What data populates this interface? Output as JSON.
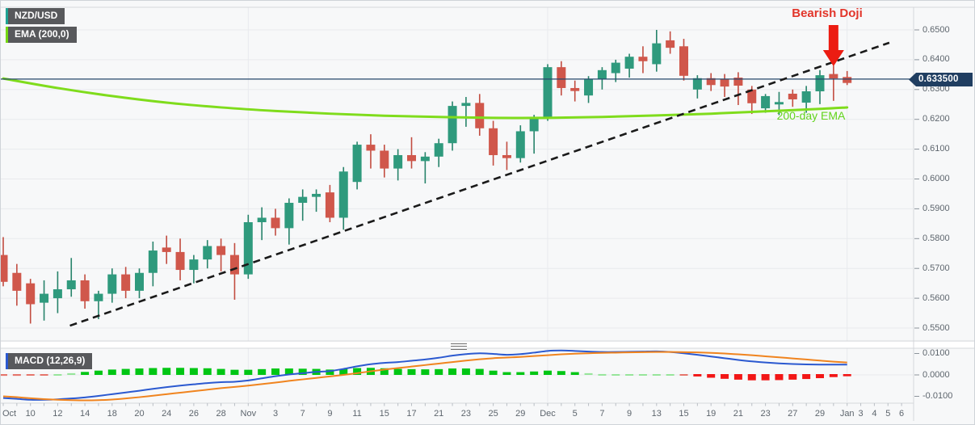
{
  "legend": {
    "symbol": "NZD/USD",
    "ema": "EMA (200,0)",
    "macd": "MACD (12,26,9)"
  },
  "annotations": {
    "bearish_doji": "Bearish Doji",
    "ema_label": "200-day EMA",
    "price_label": "0.633500"
  },
  "colors": {
    "candle_up": "#2f9a7d",
    "candle_up_wick": "#27836a",
    "candle_down": "#d0574b",
    "candle_down_wick": "#c24c40",
    "ema_line": "#7fdc1c",
    "trendline": "#1a1a1a",
    "price_line": "#26476b",
    "price_badge_bg": "#203e61",
    "macd_line": "#2b59d0",
    "signal_line": "#f0841f",
    "hist_green": "#00c614",
    "hist_green_light": "#97e59b",
    "hist_red": "#f21616",
    "hist_red_light": "#e5766c",
    "gridline": "#e8eaed",
    "border": "#d4d7db",
    "axis_text": "#5d656d",
    "arrow_red": "#ec1c12",
    "annotation_red": "#e2352a",
    "annotation_green": "#62d41c"
  },
  "chart_data": [
    {
      "type": "candlestick",
      "title": "NZD/USD daily candles",
      "ylim": [
        0.55,
        0.65
      ],
      "grid": true,
      "y_ticks": [
        {
          "label": "0.6500",
          "value": 0.65
        },
        {
          "label": "0.6400",
          "value": 0.64
        },
        {
          "label": "0.6300",
          "value": 0.63
        },
        {
          "label": "0.6200",
          "value": 0.62
        },
        {
          "label": "0.6100",
          "value": 0.61
        },
        {
          "label": "0.6000",
          "value": 0.6
        },
        {
          "label": "0.5900",
          "value": 0.59
        },
        {
          "label": "0.5800",
          "value": 0.58
        },
        {
          "label": "0.5700",
          "value": 0.57
        },
        {
          "label": "0.5600",
          "value": 0.56
        },
        {
          "label": "0.5500",
          "value": 0.55
        }
      ],
      "x_labels": [
        {
          "text": "Oct",
          "candle": 0
        },
        {
          "text": "10",
          "candle": 2
        },
        {
          "text": "12",
          "candle": 4
        },
        {
          "text": "14",
          "candle": 6
        },
        {
          "text": "18",
          "candle": 8
        },
        {
          "text": "20",
          "candle": 10
        },
        {
          "text": "24",
          "candle": 12
        },
        {
          "text": "26",
          "candle": 14
        },
        {
          "text": "28",
          "candle": 16
        },
        {
          "text": "Nov",
          "candle": 18
        },
        {
          "text": "3",
          "candle": 20
        },
        {
          "text": "7",
          "candle": 22
        },
        {
          "text": "9",
          "candle": 24
        },
        {
          "text": "11",
          "candle": 26
        },
        {
          "text": "15",
          "candle": 28
        },
        {
          "text": "17",
          "candle": 30
        },
        {
          "text": "21",
          "candle": 32
        },
        {
          "text": "23",
          "candle": 34
        },
        {
          "text": "25",
          "candle": 36
        },
        {
          "text": "29",
          "candle": 38
        },
        {
          "text": "Dec",
          "candle": 40
        },
        {
          "text": "5",
          "candle": 42
        },
        {
          "text": "7",
          "candle": 44
        },
        {
          "text": "9",
          "candle": 46
        },
        {
          "text": "13",
          "candle": 48
        },
        {
          "text": "15",
          "candle": 50
        },
        {
          "text": "19",
          "candle": 52
        },
        {
          "text": "21",
          "candle": 54
        },
        {
          "text": "23",
          "candle": 56
        },
        {
          "text": "27",
          "candle": 58
        },
        {
          "text": "29",
          "candle": 60
        },
        {
          "text": "Jan",
          "candle": 62
        },
        {
          "text": "3",
          "candle": 63
        },
        {
          "text": "4",
          "candle": 64
        },
        {
          "text": "5",
          "candle": 65
        },
        {
          "text": "6",
          "candle": 66
        }
      ],
      "month_start_candles": [
        18,
        40,
        62
      ],
      "price_line_value": 0.6335,
      "doji_candle": 61,
      "candles": [
        [
          0.5745,
          0.5805,
          0.564,
          0.5655
        ],
        [
          0.5685,
          0.5715,
          0.5575,
          0.5625
        ],
        [
          0.565,
          0.5665,
          0.5515,
          0.558
        ],
        [
          0.5585,
          0.566,
          0.5525,
          0.5615
        ],
        [
          0.56,
          0.569,
          0.555,
          0.563
        ],
        [
          0.563,
          0.5735,
          0.5605,
          0.566
        ],
        [
          0.566,
          0.568,
          0.5565,
          0.559
        ],
        [
          0.559,
          0.5625,
          0.553,
          0.5615
        ],
        [
          0.5615,
          0.57,
          0.5585,
          0.568
        ],
        [
          0.568,
          0.5705,
          0.56,
          0.5625
        ],
        [
          0.5625,
          0.57,
          0.56,
          0.5685
        ],
        [
          0.5685,
          0.579,
          0.564,
          0.576
        ],
        [
          0.577,
          0.581,
          0.5715,
          0.5755
        ],
        [
          0.5755,
          0.58,
          0.566,
          0.5695
        ],
        [
          0.5695,
          0.5745,
          0.565,
          0.573
        ],
        [
          0.573,
          0.5795,
          0.57,
          0.5775
        ],
        [
          0.5775,
          0.58,
          0.569,
          0.5745
        ],
        [
          0.5745,
          0.5785,
          0.5595,
          0.568
        ],
        [
          0.568,
          0.588,
          0.5665,
          0.5855
        ],
        [
          0.5855,
          0.5905,
          0.5795,
          0.587
        ],
        [
          0.587,
          0.59,
          0.581,
          0.5835
        ],
        [
          0.5835,
          0.5935,
          0.578,
          0.592
        ],
        [
          0.592,
          0.5965,
          0.586,
          0.594
        ],
        [
          0.594,
          0.5965,
          0.589,
          0.595
        ],
        [
          0.5955,
          0.598,
          0.5855,
          0.587
        ],
        [
          0.587,
          0.604,
          0.583,
          0.6025
        ],
        [
          0.599,
          0.6125,
          0.5965,
          0.6115
        ],
        [
          0.6115,
          0.615,
          0.6035,
          0.6095
        ],
        [
          0.6095,
          0.6115,
          0.6005,
          0.6035
        ],
        [
          0.6035,
          0.61,
          0.5995,
          0.608
        ],
        [
          0.608,
          0.614,
          0.6035,
          0.606
        ],
        [
          0.606,
          0.609,
          0.5985,
          0.6075
        ],
        [
          0.6075,
          0.6135,
          0.604,
          0.612
        ],
        [
          0.612,
          0.626,
          0.6095,
          0.6245
        ],
        [
          0.6245,
          0.6275,
          0.6175,
          0.6255
        ],
        [
          0.6255,
          0.6285,
          0.6145,
          0.617
        ],
        [
          0.617,
          0.6195,
          0.6045,
          0.608
        ],
        [
          0.608,
          0.6125,
          0.603,
          0.607
        ],
        [
          0.607,
          0.618,
          0.6055,
          0.616
        ],
        [
          0.616,
          0.6215,
          0.6085,
          0.6205
        ],
        [
          0.6205,
          0.6385,
          0.6195,
          0.6375
        ],
        [
          0.6375,
          0.6395,
          0.628,
          0.6305
        ],
        [
          0.6305,
          0.633,
          0.626,
          0.6295
        ],
        [
          0.628,
          0.6345,
          0.6255,
          0.6335
        ],
        [
          0.6335,
          0.6375,
          0.63,
          0.6365
        ],
        [
          0.6355,
          0.64,
          0.6325,
          0.639
        ],
        [
          0.637,
          0.642,
          0.634,
          0.641
        ],
        [
          0.641,
          0.6445,
          0.6355,
          0.6395
        ],
        [
          0.6385,
          0.65,
          0.636,
          0.6455
        ],
        [
          0.6465,
          0.6495,
          0.642,
          0.644
        ],
        [
          0.6445,
          0.647,
          0.633,
          0.6346
        ],
        [
          0.63,
          0.6348,
          0.627,
          0.6338
        ],
        [
          0.6338,
          0.6355,
          0.6295,
          0.6315
        ],
        [
          0.6335,
          0.6352,
          0.6275,
          0.631
        ],
        [
          0.634,
          0.6358,
          0.6248,
          0.6313
        ],
        [
          0.63,
          0.6312,
          0.6218,
          0.6254
        ],
        [
          0.6237,
          0.6285,
          0.6222,
          0.6278
        ],
        [
          0.625,
          0.6292,
          0.6214,
          0.6258
        ],
        [
          0.6286,
          0.63,
          0.6242,
          0.6267
        ],
        [
          0.6256,
          0.6312,
          0.6222,
          0.6294
        ],
        [
          0.6294,
          0.6365,
          0.6251,
          0.6348
        ],
        [
          0.6352,
          0.638,
          0.6262,
          0.6337
        ],
        [
          0.6342,
          0.6362,
          0.6315,
          0.6322
        ]
      ],
      "ema_200_points": [
        [
          0,
          0.6337
        ],
        [
          4,
          0.6305
        ],
        [
          8,
          0.6278
        ],
        [
          12,
          0.6256
        ],
        [
          16,
          0.624
        ],
        [
          20,
          0.6228
        ],
        [
          24,
          0.6219
        ],
        [
          28,
          0.6212
        ],
        [
          32,
          0.6208
        ],
        [
          36,
          0.6205
        ],
        [
          40,
          0.6205
        ],
        [
          44,
          0.6208
        ],
        [
          48,
          0.6213
        ],
        [
          52,
          0.6219
        ],
        [
          56,
          0.6227
        ],
        [
          60,
          0.6235
        ],
        [
          62,
          0.624
        ]
      ],
      "trendline": {
        "from_candle": 4.9,
        "from_value": 0.5508,
        "to_candle": 65.1,
        "to_value": 0.6457
      }
    },
    {
      "type": "macd",
      "title": "MACD (12,26,9)",
      "params": [
        12,
        26,
        9
      ],
      "ylim": [
        -0.013,
        0.0125
      ],
      "y_ticks": [
        {
          "label": "0.0100",
          "value": 0.01
        },
        {
          "label": "0.0000",
          "value": 0.0
        },
        {
          "label": "-0.0100",
          "value": -0.01
        }
      ],
      "macd_line": [
        -0.0108,
        -0.0112,
        -0.0116,
        -0.0116,
        -0.0114,
        -0.011,
        -0.0105,
        -0.0098,
        -0.009,
        -0.0082,
        -0.0074,
        -0.0065,
        -0.0057,
        -0.005,
        -0.0044,
        -0.0038,
        -0.0034,
        -0.0032,
        -0.0026,
        -0.0016,
        -0.0006,
        0.0002,
        0.0008,
        0.0014,
        0.0018,
        0.0028,
        0.004,
        0.005,
        0.0056,
        0.006,
        0.0066,
        0.0072,
        0.008,
        0.009,
        0.0097,
        0.0101,
        0.0098,
        0.0094,
        0.0097,
        0.0104,
        0.0112,
        0.0114,
        0.0112,
        0.0109,
        0.0107,
        0.0107,
        0.0108,
        0.0109,
        0.011,
        0.0107,
        0.0101,
        0.0094,
        0.0086,
        0.0078,
        0.007,
        0.0063,
        0.0058,
        0.0054,
        0.0051,
        0.0049,
        0.0048,
        0.0048,
        0.0048
      ],
      "signal_line": [
        -0.01,
        -0.0104,
        -0.0109,
        -0.0113,
        -0.0116,
        -0.0118,
        -0.0119,
        -0.0118,
        -0.0115,
        -0.011,
        -0.0104,
        -0.0097,
        -0.009,
        -0.0083,
        -0.0076,
        -0.0069,
        -0.0062,
        -0.0056,
        -0.005,
        -0.0043,
        -0.0036,
        -0.0028,
        -0.0021,
        -0.0014,
        -0.0007,
        0.0,
        0.0008,
        0.0017,
        0.0025,
        0.0032,
        0.0039,
        0.0046,
        0.0053,
        0.006,
        0.0067,
        0.0073,
        0.0078,
        0.0081,
        0.0084,
        0.0088,
        0.0092,
        0.0096,
        0.0099,
        0.0101,
        0.0103,
        0.0104,
        0.0105,
        0.0106,
        0.0107,
        0.0107,
        0.0106,
        0.0105,
        0.0103,
        0.01,
        0.0096,
        0.0092,
        0.0087,
        0.0082,
        0.0077,
        0.0072,
        0.0067,
        0.0062,
        0.0058
      ]
    }
  ]
}
